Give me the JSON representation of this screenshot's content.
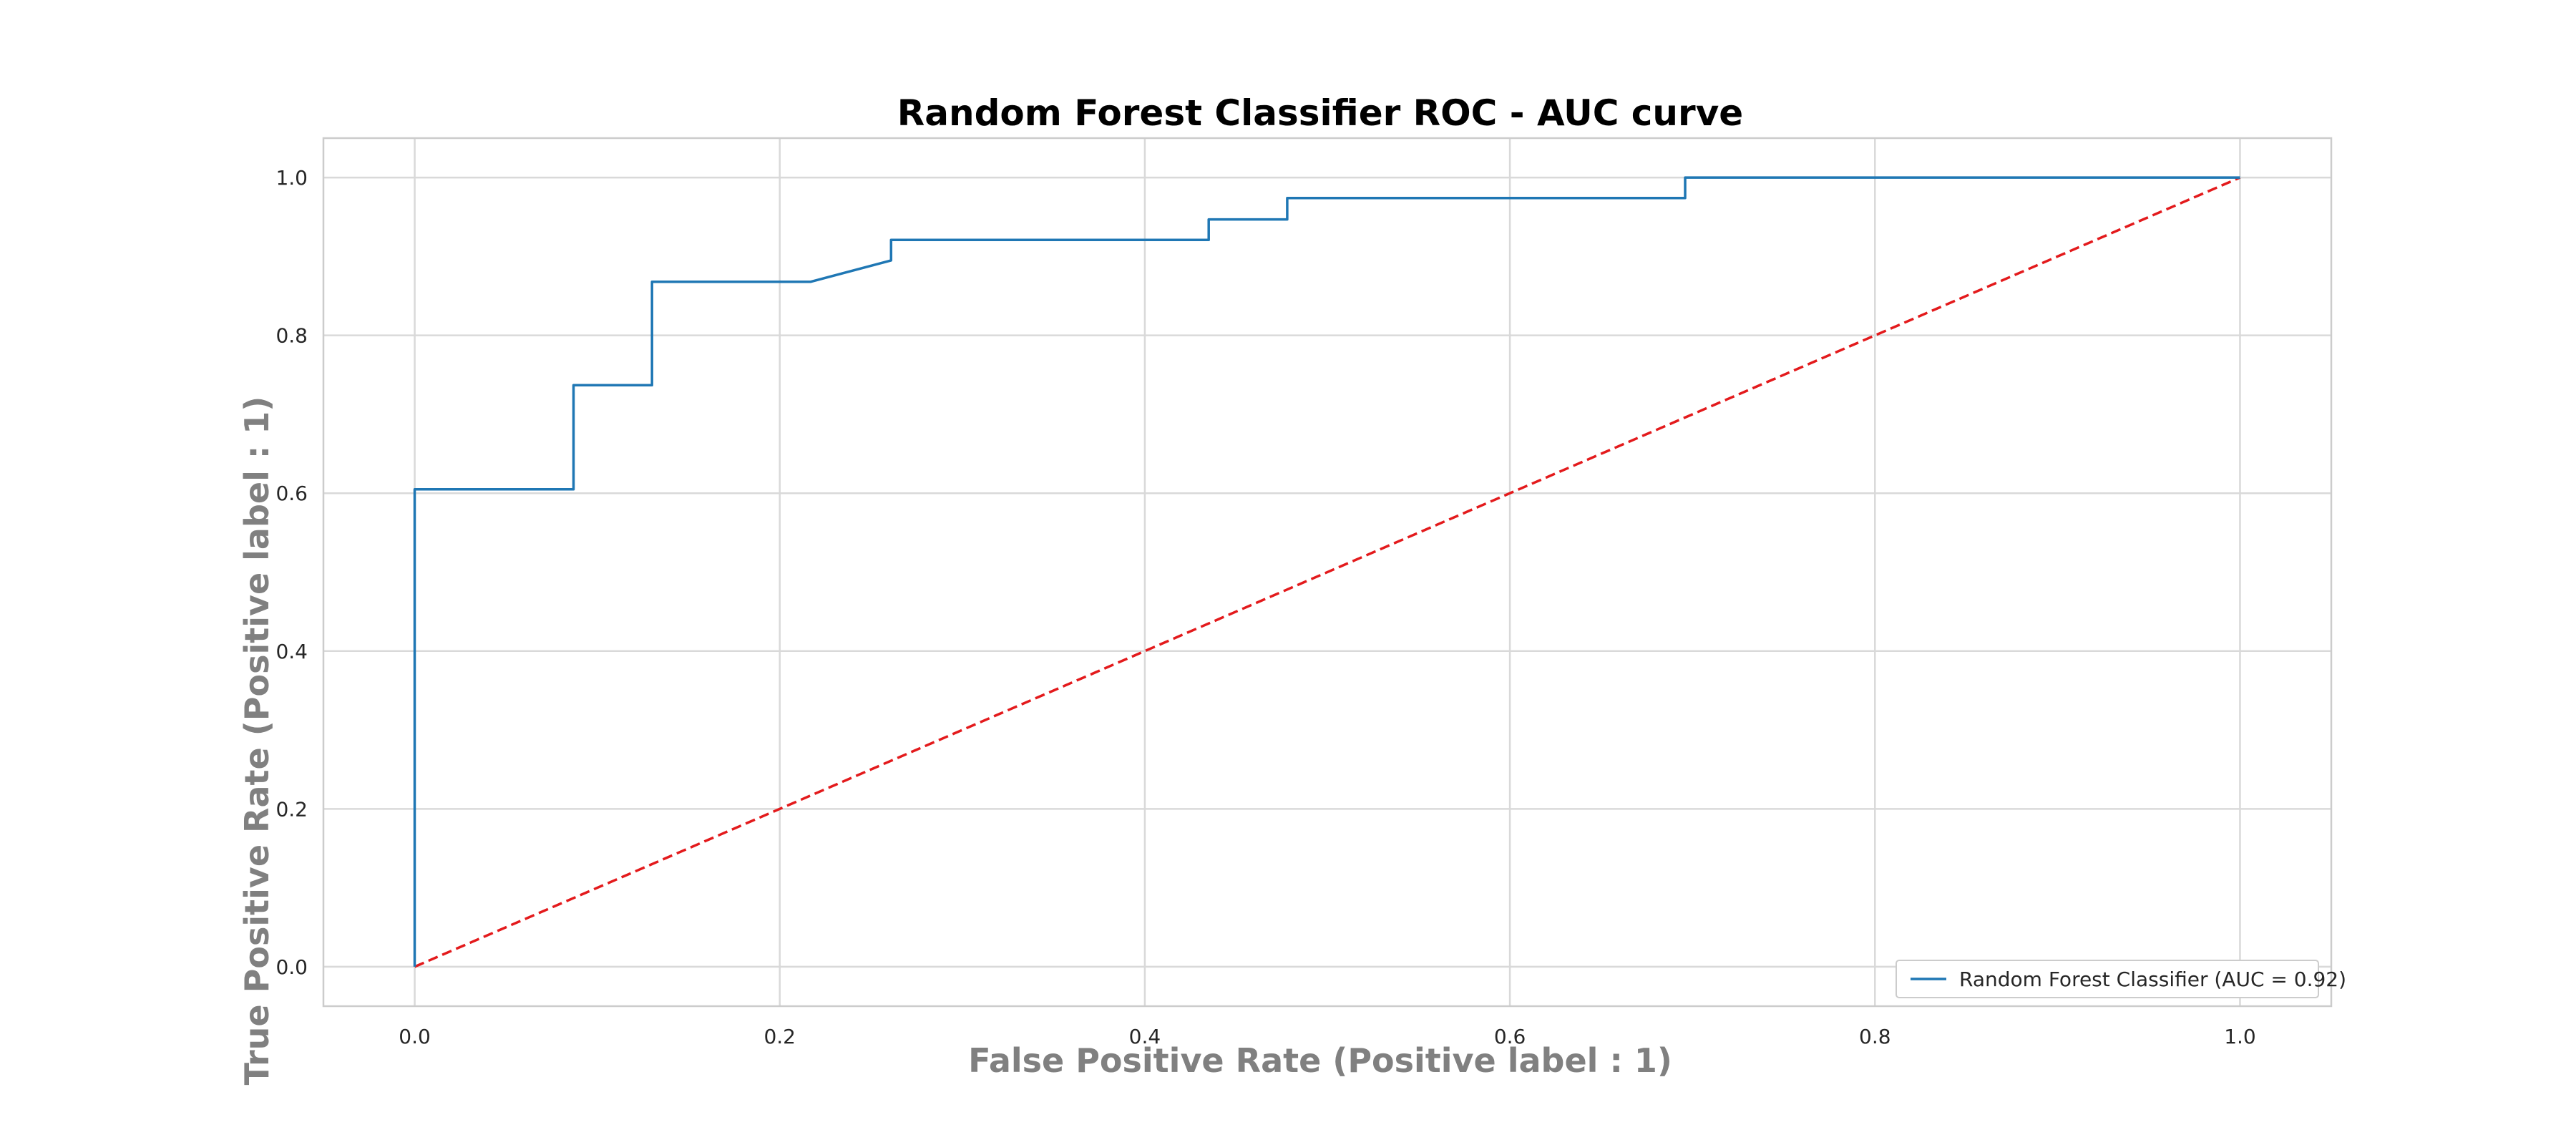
{
  "chart_data": {
    "type": "line",
    "title": "Random Forest Classifier ROC - AUC curve",
    "xlabel": "False Positive Rate (Positive label : 1)",
    "ylabel": "True Positive Rate (Positive label : 1)",
    "xlim": [
      -0.05,
      1.05
    ],
    "ylim": [
      -0.05,
      1.05
    ],
    "xticks": [
      0.0,
      0.2,
      0.4,
      0.6,
      0.8,
      1.0
    ],
    "yticks": [
      0.0,
      0.2,
      0.4,
      0.6,
      0.8,
      1.0
    ],
    "xtick_labels": [
      "0.0",
      "0.2",
      "0.4",
      "0.6",
      "0.8",
      "1.0"
    ],
    "ytick_labels": [
      "0.0",
      "0.2",
      "0.4",
      "0.6",
      "0.8",
      "1.0"
    ],
    "grid": true,
    "legend_position": "lower-right",
    "series": [
      {
        "name": "Random Forest Classifier (AUC = 0.92)",
        "color": "#1f77b4",
        "style": "solid",
        "x": [
          0.0,
          0.0,
          0.087,
          0.087,
          0.13,
          0.13,
          0.217,
          0.261,
          0.261,
          0.435,
          0.435,
          0.478,
          0.478,
          0.696,
          0.696,
          1.0
        ],
        "y": [
          0.0,
          0.605,
          0.605,
          0.737,
          0.737,
          0.868,
          0.868,
          0.895,
          0.921,
          0.921,
          0.947,
          0.947,
          0.974,
          0.974,
          1.0,
          1.0
        ]
      },
      {
        "color": "#e31a1c",
        "style": "dashed",
        "x": [
          0.0,
          1.0
        ],
        "y": [
          0.0,
          1.0
        ]
      }
    ]
  }
}
